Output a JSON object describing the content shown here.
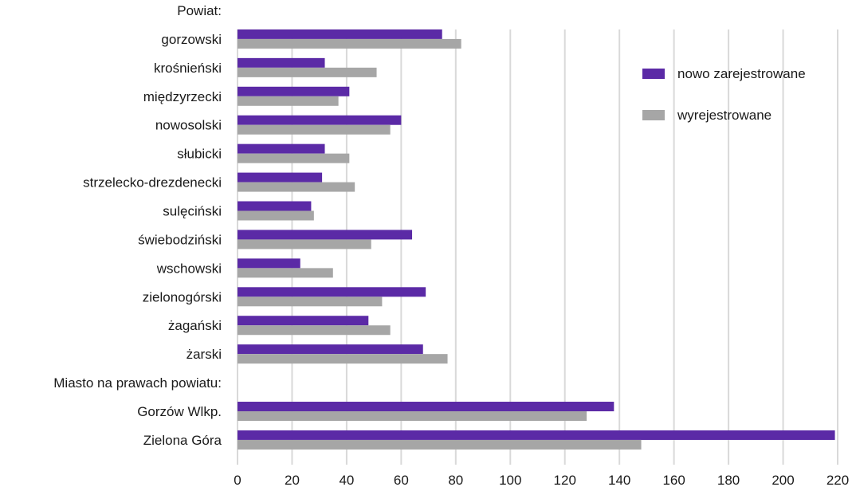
{
  "chart_data": {
    "type": "bar",
    "orientation": "horizontal",
    "xlim": [
      0,
      220
    ],
    "x_ticks": [
      "0",
      "20",
      "40",
      "60",
      "80",
      "100",
      "120",
      "140",
      "160",
      "180",
      "200",
      "220"
    ],
    "grid": "vertical",
    "legend_position": "top-right",
    "rows": [
      {
        "label": "Powiat:",
        "header": true
      },
      {
        "label": "gorzowski",
        "values": [
          75,
          82
        ]
      },
      {
        "label": "krośnieński",
        "values": [
          32,
          51
        ]
      },
      {
        "label": "międzyrzecki",
        "values": [
          41,
          37
        ]
      },
      {
        "label": "nowosolski",
        "values": [
          60,
          56
        ]
      },
      {
        "label": "słubicki",
        "values": [
          32,
          41
        ]
      },
      {
        "label": "strzelecko-drezdenecki",
        "values": [
          31,
          43
        ]
      },
      {
        "label": "sulęciński",
        "values": [
          27,
          28
        ]
      },
      {
        "label": "świebodziński",
        "values": [
          64,
          49
        ]
      },
      {
        "label": "wschowski",
        "values": [
          23,
          35
        ]
      },
      {
        "label": "zielonogórski",
        "values": [
          69,
          53
        ]
      },
      {
        "label": "żagański",
        "values": [
          48,
          56
        ]
      },
      {
        "label": "żarski",
        "values": [
          68,
          77
        ]
      },
      {
        "label": "Miasto na prawach powiatu:",
        "header": true
      },
      {
        "label": "Gorzów Wlkp.",
        "values": [
          138,
          128
        ]
      },
      {
        "label": "Zielona Góra",
        "values": [
          219,
          148
        ]
      }
    ],
    "series": [
      {
        "name": "nowo zarejestrowane",
        "color": "#5b2aa6"
      },
      {
        "name": "wyrejestrowane",
        "color": "#a6a6a6"
      }
    ]
  }
}
